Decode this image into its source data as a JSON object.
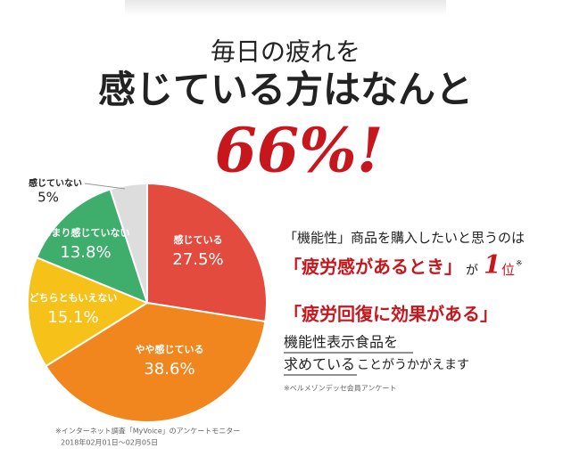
{
  "header": {
    "line1": "毎日の疲れを",
    "line2": "感じている方はなんと",
    "highlight": "66%!"
  },
  "chart_data": {
    "type": "pie",
    "categories": [
      "感じている",
      "やや感じている",
      "どちらともいえない",
      "あまり感じていない",
      "感じていない"
    ],
    "values": [
      27.5,
      38.6,
      15.1,
      13.8,
      5
    ],
    "value_labels": [
      "27.5%",
      "38.6%",
      "15.1%",
      "13.8%",
      "5%"
    ],
    "colors": [
      "#e24b3d",
      "#f0861d",
      "#f6c21a",
      "#3fad6c",
      "#dddddd"
    ],
    "note_lines": [
      "※インターネット調査「MyVoice」のアンケートモニター",
      "2018年02月01日～02月05日"
    ]
  },
  "message": {
    "line1": "「機能性」商品を購入したいと思うのは",
    "line2": {
      "quote": "「疲労感があるとき」",
      "particle": "が",
      "rank": "1",
      "rank_unit": "位",
      "mark": "※"
    },
    "line3": "「疲労回復に効果がある」",
    "line4": "機能性表示食品を",
    "line5a": "求めている",
    "line5b": "ことがうかがえます",
    "note": "※ベルメゾンデッセ会員アンケート"
  }
}
